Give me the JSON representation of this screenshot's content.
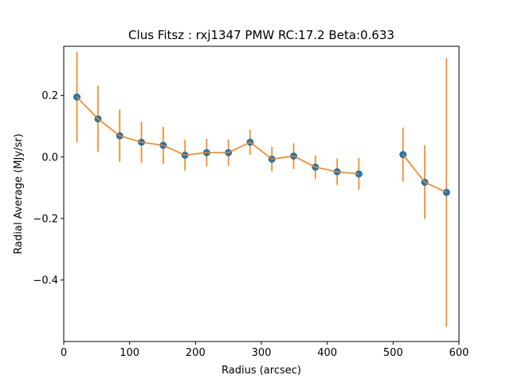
{
  "chart_data": {
    "type": "scatter",
    "title": "Clus Fitsz : rxj1347  PMW  RC:17.2  Beta:0.633",
    "xlabel": "Radius (arcsec)",
    "ylabel": "Radial Average (MJy/sr)",
    "xlim": [
      0,
      600
    ],
    "ylim": [
      -0.6,
      0.36
    ],
    "xticks": [
      0,
      100,
      200,
      300,
      400,
      500,
      600
    ],
    "yticks": [
      -0.4,
      -0.2,
      0.0,
      0.2
    ],
    "xtick_labels": [
      "0",
      "100",
      "200",
      "300",
      "400",
      "500",
      "600"
    ],
    "ytick_labels": [
      "−0.4",
      "−0.2",
      "0.0",
      "0.2"
    ],
    "grid": false,
    "colors": {
      "points": "#1f77b4",
      "line": "#ff7f0e",
      "errorbars": "#ff7f0e"
    },
    "segments": [
      [
        {
          "x": 20,
          "y": 0.195,
          "err": 0.147
        },
        {
          "x": 52,
          "y": 0.124,
          "err": 0.108
        },
        {
          "x": 85,
          "y": 0.069,
          "err": 0.085
        },
        {
          "x": 118,
          "y": 0.048,
          "err": 0.067
        },
        {
          "x": 151,
          "y": 0.038,
          "err": 0.06
        },
        {
          "x": 184,
          "y": 0.006,
          "err": 0.05
        },
        {
          "x": 217,
          "y": 0.014,
          "err": 0.045
        },
        {
          "x": 250,
          "y": 0.014,
          "err": 0.043
        },
        {
          "x": 283,
          "y": 0.048,
          "err": 0.041
        },
        {
          "x": 316,
          "y": -0.007,
          "err": 0.04
        },
        {
          "x": 349,
          "y": 0.003,
          "err": 0.042
        },
        {
          "x": 382,
          "y": -0.033,
          "err": 0.038
        },
        {
          "x": 415,
          "y": -0.048,
          "err": 0.043
        },
        {
          "x": 448,
          "y": -0.055,
          "err": 0.052
        }
      ],
      [
        {
          "x": 515,
          "y": 0.008,
          "err": 0.088
        },
        {
          "x": 548,
          "y": -0.082,
          "err": 0.12
        },
        {
          "x": 581,
          "y": -0.115,
          "err": 0.437
        }
      ]
    ]
  }
}
